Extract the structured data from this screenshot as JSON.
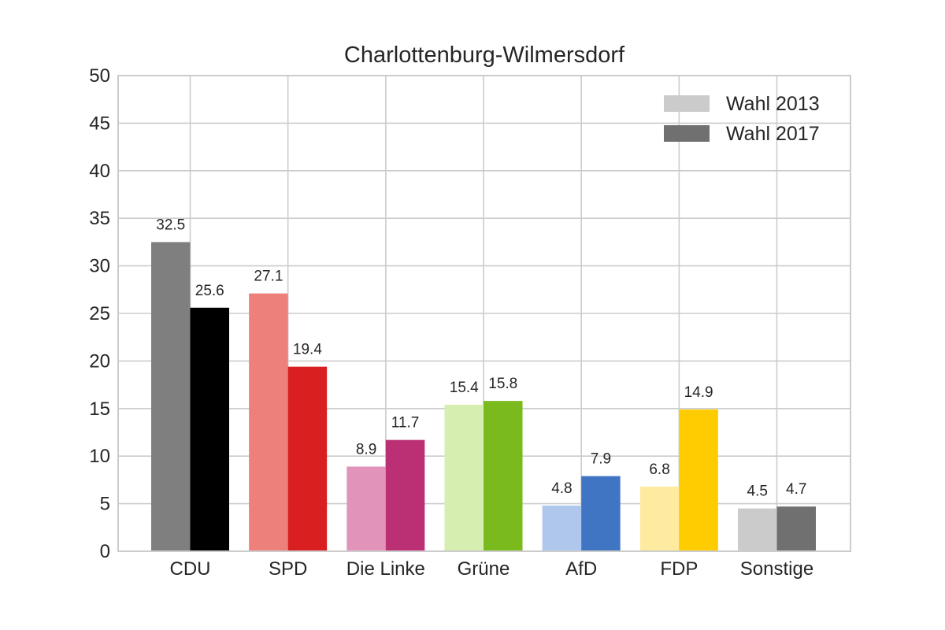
{
  "chart_data": {
    "type": "bar",
    "title": "Charlottenburg-Wilmersdorf",
    "xlabel": "",
    "ylabel": "",
    "ylim": [
      0,
      50
    ],
    "yticks": [
      0,
      5,
      10,
      15,
      20,
      25,
      30,
      35,
      40,
      45,
      50
    ],
    "grid": true,
    "legend_position": "top-right",
    "categories": [
      "CDU",
      "SPD",
      "Die Linke",
      "Grüne",
      "AfD",
      "FDP",
      "Sonstige"
    ],
    "series": [
      {
        "name": "Wahl 2013",
        "legend_color": "#cbcbcb",
        "values": [
          32.5,
          27.1,
          8.9,
          15.4,
          4.8,
          6.8,
          4.5
        ],
        "colors": [
          "#7f7f7f",
          "#ed807b",
          "#e193ba",
          "#d6efb0",
          "#afc7ed",
          "#feeb9f",
          "#cbcbcb"
        ]
      },
      {
        "name": "Wahl 2017",
        "legend_color": "#707070",
        "values": [
          25.6,
          19.4,
          11.7,
          15.8,
          7.9,
          14.9,
          4.7
        ],
        "colors": [
          "#000000",
          "#d91f1f",
          "#bb3075",
          "#7aba1d",
          "#3f75c2",
          "#fecc00",
          "#707070"
        ]
      }
    ]
  }
}
